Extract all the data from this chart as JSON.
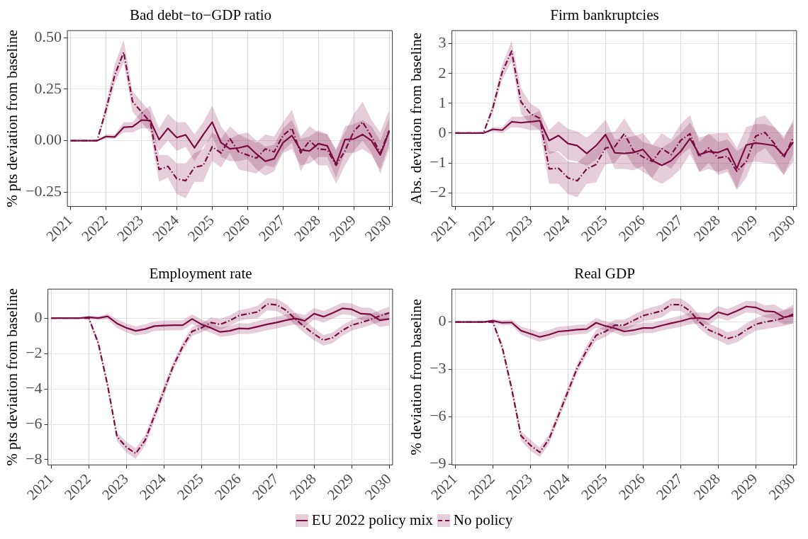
{
  "chart_data": [
    {
      "type": "line",
      "title": "Bad debt−to−GDP ratio",
      "ylabel": "% pts deviation from baseline",
      "x": [
        2021,
        2021.25,
        2021.5,
        2021.75,
        2022,
        2022.25,
        2022.5,
        2022.75,
        2023,
        2023.25,
        2023.5,
        2023.75,
        2024,
        2024.25,
        2024.5,
        2024.75,
        2025,
        2025.25,
        2025.5,
        2025.75,
        2026,
        2026.25,
        2026.5,
        2026.75,
        2027,
        2027.25,
        2027.5,
        2027.75,
        2028,
        2028.25,
        2028.5,
        2028.75,
        2029,
        2029.25,
        2029.5,
        2029.75,
        2030
      ],
      "series": [
        {
          "name": "EU 2022 policy mix",
          "color": "#7b0c42",
          "line_style": "solid",
          "values": [
            0,
            0,
            0,
            0,
            0.02,
            0.018,
            0.065,
            0.068,
            0.1,
            0.098,
            0.005,
            0.06,
            0.015,
            0.028,
            -0.035,
            0.03,
            0.09,
            -0.01,
            -0.04,
            -0.035,
            -0.025,
            -0.065,
            -0.1,
            -0.088,
            -0.01,
            0.025,
            -0.045,
            -0.05,
            -0.015,
            -0.025,
            -0.115,
            0.005,
            0.008,
            0.03,
            0,
            -0.07,
            0.045
          ],
          "lower": [
            0,
            0,
            0,
            0,
            0.01,
            0.01,
            0.04,
            0.04,
            0.06,
            0.06,
            -0.05,
            0,
            -0.05,
            -0.03,
            -0.1,
            -0.03,
            0.02,
            -0.08,
            -0.1,
            -0.1,
            -0.09,
            -0.14,
            -0.17,
            -0.15,
            -0.06,
            -0.04,
            -0.12,
            -0.11,
            -0.08,
            -0.08,
            -0.18,
            -0.06,
            -0.06,
            -0.04,
            -0.07,
            -0.14,
            -0.02
          ],
          "upper": [
            0,
            0,
            0,
            0,
            0.03,
            0.03,
            0.09,
            0.09,
            0.14,
            0.17,
            0.06,
            0.13,
            0.09,
            0.09,
            0.03,
            0.09,
            0.17,
            0.07,
            0.01,
            0.03,
            0.04,
            0,
            -0.03,
            -0.02,
            0.06,
            0.1,
            0.01,
            0.02,
            0.05,
            0.03,
            -0.05,
            0.07,
            0.08,
            0.1,
            0.07,
            0,
            0.11
          ]
        },
        {
          "name": "No policy",
          "color": "#7b0c42",
          "line_style": "dashed",
          "values": [
            0,
            0,
            0,
            0,
            0.15,
            0.32,
            0.43,
            0.19,
            0.14,
            0.09,
            -0.14,
            -0.125,
            -0.185,
            -0.195,
            -0.13,
            -0.12,
            -0.03,
            -0.06,
            0.01,
            -0.055,
            -0.07,
            -0.085,
            -0.04,
            -0.055,
            0.025,
            0.06,
            -0.06,
            0,
            -0.04,
            -0.045,
            -0.12,
            -0.05,
            0.045,
            0.09,
            0.02,
            -0.06,
            0.05
          ],
          "lower": [
            0,
            0,
            0,
            0,
            0.12,
            0.28,
            0.38,
            0.14,
            0.09,
            0.04,
            -0.2,
            -0.18,
            -0.26,
            -0.28,
            -0.2,
            -0.2,
            -0.1,
            -0.13,
            -0.06,
            -0.14,
            -0.15,
            -0.16,
            -0.12,
            -0.13,
            -0.05,
            -0.01,
            -0.15,
            -0.07,
            -0.12,
            -0.12,
            -0.21,
            -0.12,
            -0.05,
            0,
            -0.06,
            -0.16,
            -0.04
          ],
          "upper": [
            0,
            0,
            0,
            0,
            0.18,
            0.37,
            0.49,
            0.24,
            0.19,
            0.14,
            -0.07,
            -0.07,
            -0.11,
            -0.11,
            -0.06,
            -0.04,
            0.04,
            0.01,
            0.07,
            0.03,
            0.01,
            -0.01,
            0.03,
            0.02,
            0.09,
            0.15,
            0.02,
            0.07,
            0.04,
            0.03,
            -0.04,
            0.04,
            0.13,
            0.19,
            0.1,
            0.04,
            0.15
          ]
        }
      ],
      "xlim": [
        2020.91,
        2030.09
      ],
      "xticks": [
        2021,
        2022,
        2023,
        2024,
        2025,
        2026,
        2027,
        2028,
        2029,
        2030
      ],
      "ylim": [
        -0.32,
        0.535
      ],
      "yticks": [
        {
          "value": -0.25,
          "label": "−0.25"
        },
        {
          "value": 0,
          "label": "0.00"
        },
        {
          "value": 0.25,
          "label": "0.25"
        },
        {
          "value": 0.5,
          "label": "0.50"
        }
      ],
      "grid": true,
      "legend": "bottom"
    },
    {
      "type": "line",
      "title": "Firm bankruptcies",
      "ylabel": "Abs. deviation from baseline",
      "x": [
        2021,
        2021.25,
        2021.5,
        2021.75,
        2022,
        2022.25,
        2022.5,
        2022.75,
        2023,
        2023.25,
        2023.5,
        2023.75,
        2024,
        2024.25,
        2024.5,
        2024.75,
        2025,
        2025.25,
        2025.5,
        2025.75,
        2026,
        2026.25,
        2026.5,
        2026.75,
        2027,
        2027.25,
        2027.5,
        2027.75,
        2028,
        2028.25,
        2028.5,
        2028.75,
        2029,
        2029.25,
        2029.5,
        2029.75,
        2030
      ],
      "series": [
        {
          "color": "#7b0c42",
          "line_style": "solid",
          "values": [
            0,
            0,
            0,
            0,
            0.13,
            0.1,
            0.38,
            0.35,
            0.38,
            0.42,
            -0.25,
            -0.08,
            -0.35,
            -0.42,
            -0.68,
            -0.42,
            -0.05,
            -0.66,
            -0.68,
            -0.65,
            -0.55,
            -0.92,
            -1.08,
            -0.92,
            -0.62,
            -0.18,
            -0.72,
            -0.62,
            -0.65,
            -0.52,
            -1.18,
            -0.4,
            -0.33,
            -0.37,
            -0.42,
            -0.75,
            -0.3
          ],
          "lower": [
            0,
            0,
            0,
            0,
            0.05,
            0,
            0.2,
            0.18,
            0.1,
            0.1,
            -0.7,
            -0.6,
            -0.9,
            -0.95,
            -1.1,
            -0.9,
            -0.5,
            -1.2,
            -1.2,
            -1.25,
            -1.1,
            -1.55,
            -1.7,
            -1.5,
            -1.2,
            -0.7,
            -1.3,
            -1.2,
            -1.3,
            -1.2,
            -1.85,
            -1,
            -0.95,
            -1,
            -1.05,
            -1.4,
            -0.95
          ],
          "upper": [
            0,
            0,
            0,
            0,
            0.2,
            0.2,
            0.55,
            0.55,
            0.6,
            0.75,
            0.1,
            0.4,
            0.15,
            0.05,
            -0.15,
            0.1,
            0.45,
            -0.2,
            -0.15,
            -0.1,
            0,
            -0.4,
            -0.5,
            -0.3,
            0,
            0.35,
            -0.15,
            -0.05,
            0,
            0,
            -0.5,
            0.2,
            0.3,
            0.3,
            0.2,
            -0.1,
            0.35
          ]
        },
        {
          "color": "#7b0c42",
          "line_style": "dashed",
          "values": [
            0,
            0,
            0,
            0,
            0.85,
            2.05,
            2.75,
            1.05,
            0.65,
            0.5,
            -1.2,
            -1.18,
            -1.5,
            -1.6,
            -1.2,
            -1.05,
            -0.5,
            -0.45,
            -0.02,
            -0.6,
            -0.8,
            -0.95,
            -0.52,
            -0.72,
            -0.25,
            -0.02,
            -0.8,
            -0.5,
            -0.83,
            -0.78,
            -1.28,
            -0.95,
            -0.1,
            0.02,
            -0.35,
            -0.82,
            -0.15
          ],
          "lower": [
            0,
            0,
            0,
            0,
            0.7,
            1.8,
            2.4,
            0.65,
            0.3,
            0.1,
            -1.7,
            -1.7,
            -2.05,
            -2.15,
            -1.7,
            -1.65,
            -1.05,
            -1,
            -0.6,
            -1.1,
            -1.3,
            -1.5,
            -1,
            -1.2,
            -0.75,
            -0.5,
            -1.3,
            -1,
            -1.4,
            -1.3,
            -1.9,
            -1.5,
            -0.7,
            -0.5,
            -0.9,
            -1.4,
            -0.7
          ],
          "upper": [
            0,
            0,
            0,
            0,
            1,
            2.3,
            3.1,
            1.5,
            1,
            0.8,
            -0.6,
            -0.65,
            -0.95,
            -1,
            -0.7,
            -0.5,
            0,
            0.05,
            0.5,
            0,
            -0.3,
            -0.4,
            0,
            -0.2,
            0.3,
            0.6,
            -0.3,
            0,
            -0.3,
            -0.2,
            -0.6,
            -0.4,
            0.5,
            0.6,
            0.2,
            -0.2,
            0.45
          ]
        }
      ],
      "xlim": [
        2020.91,
        2030.09
      ],
      "xticks": [
        2021,
        2022,
        2023,
        2024,
        2025,
        2026,
        2027,
        2028,
        2029,
        2030
      ],
      "ylim": [
        -2.46,
        3.44
      ],
      "yticks": [
        {
          "value": -2,
          "label": "−2"
        },
        {
          "value": -1,
          "label": "−1"
        },
        0,
        1,
        2,
        3
      ],
      "grid": true
    },
    {
      "type": "line",
      "title": "Employment rate",
      "ylabel": "% pts deviation from baseline",
      "x": [
        2021,
        2021.25,
        2021.5,
        2021.75,
        2022,
        2022.25,
        2022.5,
        2022.75,
        2023,
        2023.25,
        2023.5,
        2023.75,
        2024,
        2024.25,
        2024.5,
        2024.75,
        2025,
        2025.25,
        2025.5,
        2025.75,
        2026,
        2026.25,
        2026.5,
        2026.75,
        2027,
        2027.25,
        2027.5,
        2027.75,
        2028,
        2028.25,
        2028.5,
        2028.75,
        2029,
        2029.25,
        2029.5,
        2029.75,
        2030
      ],
      "series": [
        {
          "color": "#7b0c42",
          "line_style": "solid",
          "values": [
            0,
            0,
            0,
            0,
            0.05,
            0,
            0.1,
            -0.3,
            -0.55,
            -0.72,
            -0.62,
            -0.45,
            -0.42,
            -0.4,
            -0.4,
            -0.05,
            -0.35,
            -0.55,
            -0.78,
            -0.72,
            -0.58,
            -0.6,
            -0.48,
            -0.35,
            -0.25,
            -0.12,
            -0.02,
            -0.15,
            0.25,
            0.08,
            0.3,
            0.55,
            0.5,
            0.25,
            0.22,
            -0.12,
            -0.05
          ],
          "lower": [
            0,
            0,
            0,
            0,
            -0.05,
            -0.1,
            -0.05,
            -0.55,
            -0.8,
            -0.98,
            -0.9,
            -0.72,
            -0.7,
            -0.68,
            -0.68,
            -0.32,
            -0.62,
            -0.82,
            -1.05,
            -1,
            -0.88,
            -0.9,
            -0.8,
            -0.68,
            -0.58,
            -0.45,
            -0.35,
            -0.48,
            -0.08,
            -0.25,
            -0.03,
            0.22,
            0.17,
            -0.1,
            -0.15,
            -0.5,
            -0.42
          ],
          "upper": [
            0,
            0,
            0,
            0,
            0.15,
            0.1,
            0.25,
            -0.05,
            -0.3,
            -0.46,
            -0.34,
            -0.18,
            -0.14,
            -0.12,
            -0.12,
            0.22,
            -0.08,
            -0.28,
            -0.51,
            -0.44,
            -0.28,
            -0.3,
            -0.16,
            -0.02,
            0.08,
            0.21,
            0.31,
            0.18,
            0.58,
            0.41,
            0.63,
            0.88,
            0.83,
            0.6,
            0.59,
            0.26,
            0.32
          ]
        },
        {
          "color": "#7b0c42",
          "line_style": "dashed",
          "values": [
            0,
            0,
            0,
            0,
            0,
            -1.4,
            -3.8,
            -6.7,
            -7.3,
            -7.65,
            -6.9,
            -5.5,
            -4.1,
            -2.7,
            -1.6,
            -0.75,
            -0.55,
            -0.25,
            -0.35,
            -0.15,
            0.15,
            0.25,
            0.35,
            0.8,
            0.75,
            0.45,
            -0.05,
            -0.5,
            -0.9,
            -1.25,
            -1.1,
            -0.7,
            -0.4,
            -0.25,
            -0.08,
            0.12,
            0.3
          ],
          "lower": [
            0,
            0,
            0,
            0,
            -0.1,
            -1.6,
            -4.05,
            -6.95,
            -7.6,
            -7.95,
            -7.2,
            -5.8,
            -4.4,
            -2.95,
            -1.85,
            -1,
            -0.8,
            -0.55,
            -0.65,
            -0.45,
            -0.15,
            -0.05,
            0,
            0.45,
            0.4,
            0.1,
            -0.4,
            -0.85,
            -1.25,
            -1.55,
            -1.4,
            -1,
            -0.7,
            -0.55,
            -0.4,
            -0.2,
            -0.05
          ],
          "upper": [
            0,
            0,
            0,
            0,
            0.1,
            -1.2,
            -3.55,
            -6.45,
            -7,
            -7.35,
            -6.6,
            -5.2,
            -3.8,
            -2.45,
            -1.35,
            -0.5,
            -0.3,
            0.05,
            -0.05,
            0.15,
            0.45,
            0.55,
            0.7,
            1.15,
            1.1,
            0.8,
            0.3,
            -0.15,
            -0.55,
            -0.95,
            -0.8,
            -0.4,
            -0.1,
            0.05,
            0.24,
            0.45,
            0.65
          ]
        }
      ],
      "xlim": [
        2020.91,
        2030.09
      ],
      "xticks": [
        2021,
        2022,
        2023,
        2024,
        2025,
        2026,
        2027,
        2028,
        2029,
        2030
      ],
      "ylim": [
        -8.3,
        1.64
      ],
      "yticks": [
        {
          "value": -8,
          "label": "−8"
        },
        {
          "value": -6,
          "label": "−6"
        },
        {
          "value": -4,
          "label": "−4"
        },
        {
          "value": -2,
          "label": "−2"
        },
        0
      ],
      "grid": true
    },
    {
      "type": "line",
      "title": "Real GDP",
      "ylabel": "% deviation from baseline",
      "x": [
        2021,
        2021.25,
        2021.5,
        2021.75,
        2022,
        2022.25,
        2022.5,
        2022.75,
        2023,
        2023.25,
        2023.5,
        2023.75,
        2024,
        2024.25,
        2024.5,
        2024.75,
        2025,
        2025.25,
        2025.5,
        2025.75,
        2026,
        2026.25,
        2026.5,
        2026.75,
        2027,
        2027.25,
        2027.5,
        2027.75,
        2028,
        2028.25,
        2028.5,
        2028.75,
        2029,
        2029.25,
        2029.5,
        2029.75,
        2030
      ],
      "series": [
        {
          "color": "#7b0c42",
          "line_style": "solid",
          "values": [
            0,
            0,
            0,
            0,
            0.08,
            -0.05,
            -0.03,
            -0.55,
            -0.75,
            -0.95,
            -0.8,
            -0.6,
            -0.55,
            -0.48,
            -0.45,
            -0.05,
            -0.25,
            -0.4,
            -0.6,
            -0.52,
            -0.38,
            -0.38,
            -0.22,
            -0.08,
            0.05,
            0.22,
            0.25,
            0.18,
            0.62,
            0.45,
            0.7,
            0.98,
            0.92,
            0.68,
            0.65,
            0.3,
            0.4
          ],
          "lower": [
            0,
            0,
            0,
            0,
            -0.05,
            -0.2,
            -0.2,
            -0.8,
            -1.05,
            -1.25,
            -1.1,
            -0.9,
            -0.85,
            -0.78,
            -0.75,
            -0.35,
            -0.55,
            -0.7,
            -0.9,
            -0.85,
            -0.7,
            -0.7,
            -0.55,
            -0.42,
            -0.3,
            -0.15,
            -0.1,
            -0.2,
            0.25,
            0.08,
            0.33,
            0.6,
            0.55,
            0.3,
            0.2,
            -0.15,
            -0.1
          ],
          "upper": [
            0,
            0,
            0,
            0,
            0.2,
            0.1,
            0.15,
            -0.3,
            -0.45,
            -0.65,
            -0.5,
            -0.3,
            -0.25,
            -0.18,
            -0.15,
            0.25,
            0.05,
            -0.1,
            -0.3,
            -0.2,
            -0.05,
            -0.05,
            0.1,
            0.25,
            0.4,
            0.6,
            0.6,
            0.55,
            1,
            0.82,
            1.07,
            1.35,
            1.3,
            1.05,
            1.1,
            0.75,
            0.9
          ]
        },
        {
          "color": "#7b0c42",
          "line_style": "dashed",
          "values": [
            0,
            0,
            0,
            0,
            0,
            -1.6,
            -4.2,
            -7.2,
            -7.8,
            -8.25,
            -7.4,
            -5.9,
            -4.4,
            -2.9,
            -1.8,
            -0.85,
            -0.6,
            -0.2,
            -0.2,
            0.1,
            0.4,
            0.55,
            0.7,
            1.1,
            1.1,
            0.7,
            0,
            -0.5,
            -0.75,
            -1.05,
            -0.9,
            -0.5,
            -0.15,
            0,
            0.1,
            0.25,
            0.5
          ],
          "lower": [
            0,
            0,
            0,
            0,
            -0.1,
            -1.85,
            -4.5,
            -7.5,
            -8.15,
            -8.55,
            -7.7,
            -6.2,
            -4.7,
            -3.2,
            -2.1,
            -1.2,
            -0.95,
            -0.55,
            -0.55,
            -0.25,
            0.05,
            0.15,
            0.3,
            0.7,
            0.7,
            0.3,
            -0.4,
            -0.9,
            -1.15,
            -1.45,
            -1.3,
            -0.9,
            -0.55,
            -0.45,
            -0.35,
            -0.25,
            -0.1
          ],
          "upper": [
            0,
            0,
            0,
            0,
            0.1,
            -1.35,
            -3.9,
            -6.9,
            -7.45,
            -7.95,
            -7.1,
            -5.6,
            -4.1,
            -2.6,
            -1.5,
            -0.5,
            -0.25,
            0.15,
            0.15,
            0.45,
            0.75,
            0.95,
            1.1,
            1.5,
            1.5,
            1.1,
            0.4,
            -0.1,
            -0.35,
            -0.65,
            -0.5,
            -0.1,
            0.25,
            0.45,
            0.55,
            0.75,
            1.1
          ]
        }
      ],
      "xlim": [
        2020.91,
        2030.09
      ],
      "xticks": [
        2021,
        2022,
        2023,
        2024,
        2025,
        2026,
        2027,
        2028,
        2029,
        2030
      ],
      "ylim": [
        -9.05,
        2.08
      ],
      "yticks": [
        {
          "value": -9,
          "label": "−9"
        },
        {
          "value": -6,
          "label": "−6"
        },
        {
          "value": -3,
          "label": "−3"
        },
        0
      ],
      "grid": true
    }
  ]
}
